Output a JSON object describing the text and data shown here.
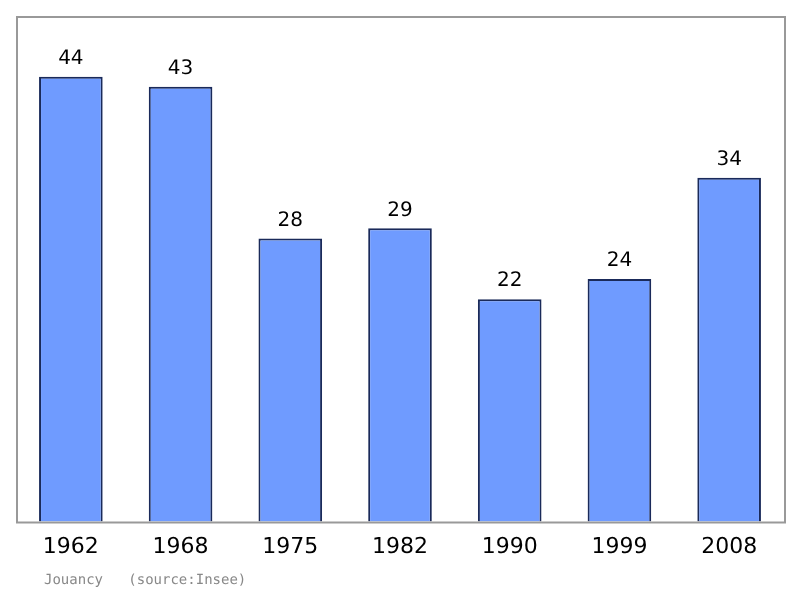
{
  "chart_data": {
    "type": "bar",
    "categories": [
      "1962",
      "1968",
      "1975",
      "1982",
      "1990",
      "1999",
      "2008"
    ],
    "values": [
      44,
      43,
      28,
      29,
      22,
      24,
      34
    ],
    "color": "#6f9bff",
    "data_labels": true,
    "grid": false,
    "legend": false,
    "tick_labels": "x",
    "annotations": [
      "Jouancy   (source:Insee)"
    ]
  }
}
